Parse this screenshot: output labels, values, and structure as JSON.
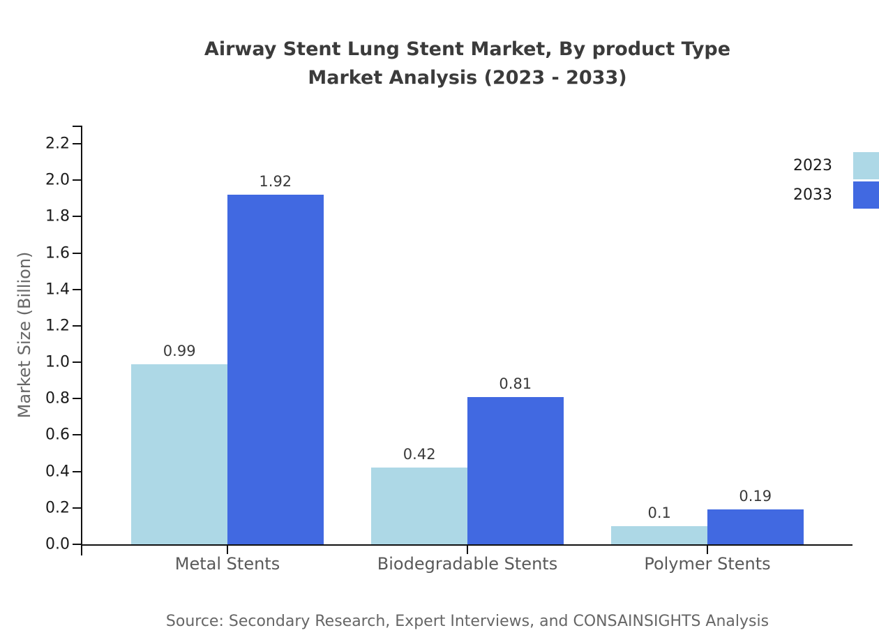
{
  "title": {
    "line1": "Airway Stent Lung Stent Market, By product Type",
    "line2": "Market Analysis (2023 - 2033)"
  },
  "source": "Source: Secondary Research, Expert Interviews, and CONSAINSIGHTS Analysis",
  "colors": {
    "series_2023": "#ADD8E6",
    "series_2033": "#4169E1",
    "axis": "#111111",
    "muted_text": "#666666"
  },
  "chart_data": {
    "type": "bar",
    "categories": [
      "Metal Stents",
      "Biodegradable Stents",
      "Polymer Stents"
    ],
    "series": [
      {
        "name": "2023",
        "color": "#ADD8E6",
        "values": [
          0.99,
          0.42,
          0.1
        ]
      },
      {
        "name": "2033",
        "color": "#4169E1",
        "values": [
          1.92,
          0.81,
          0.19
        ]
      }
    ],
    "value_labels": [
      [
        "0.99",
        "0.42",
        "0.1"
      ],
      [
        "1.92",
        "0.81",
        "0.19"
      ]
    ],
    "title": "Airway Stent Lung Stent Market, By product Type Market Analysis (2023 - 2033)",
    "xlabel": "",
    "ylabel": "Market Size (Billion)",
    "ylim": [
      0,
      2.3
    ],
    "yticks": [
      0.0,
      0.2,
      0.4,
      0.6,
      0.8,
      1.0,
      1.2,
      1.4,
      1.6,
      1.8,
      2.0,
      2.2
    ],
    "grid": false,
    "legend_position": "top-right"
  }
}
